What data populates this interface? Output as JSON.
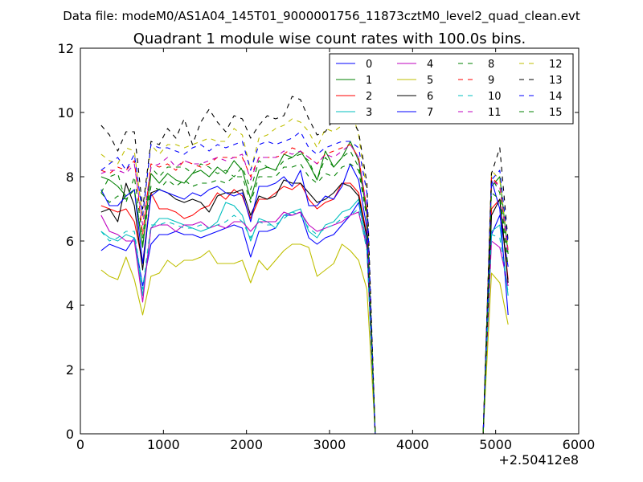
{
  "chart_data": {
    "type": "line",
    "suptitle": "Data file: modeM0/AS1A04_145T01_9000001756_11873cztM0_level2_quad_clean.evt",
    "title": "Quadrant 1 module wise count rates with 100.0s bins.",
    "xlabel": "",
    "ylabel": "",
    "offset_text": "+2.50412e8",
    "xlim": [
      0,
      6000
    ],
    "ylim": [
      0,
      12
    ],
    "xticks": [
      0,
      1000,
      2000,
      3000,
      4000,
      5000,
      6000
    ],
    "yticks": [
      0,
      2,
      4,
      6,
      8,
      10,
      12
    ],
    "legend": {
      "placement": "top-right",
      "columns": 4
    },
    "x": [
      250,
      350,
      450,
      550,
      650,
      750,
      850,
      950,
      1050,
      1150,
      1250,
      1350,
      1450,
      1550,
      1650,
      1750,
      1850,
      1950,
      2050,
      2150,
      2250,
      2350,
      2450,
      2550,
      2650,
      2750,
      2850,
      2950,
      3050,
      3150,
      3250,
      3350,
      3450,
      3550,
      3650,
      3750,
      3850,
      3950,
      4050,
      4150,
      4250,
      4350,
      4450,
      4550,
      4650,
      4750,
      4850,
      4950,
      5050,
      5150
    ],
    "series": [
      {
        "name": "0",
        "color": "#0000ff",
        "dash": false,
        "values": [
          5.7,
          5.9,
          5.8,
          5.7,
          6.1,
          4.6,
          5.9,
          6.2,
          6.2,
          6.3,
          6.2,
          6.2,
          6.1,
          6.2,
          6.3,
          6.4,
          6.5,
          6.4,
          5.5,
          6.3,
          6.3,
          6.4,
          6.8,
          6.8,
          6.9,
          6.1,
          5.9,
          6.1,
          6.2,
          6.5,
          6.8,
          7.2,
          5.9,
          0,
          0,
          0,
          0,
          0,
          0,
          0,
          0,
          0,
          0,
          0,
          0,
          0,
          0,
          6.2,
          6.8,
          5.2
        ]
      },
      {
        "name": "1",
        "color": "#008000",
        "dash": false,
        "values": [
          8.0,
          7.9,
          7.7,
          7.4,
          7.6,
          5.8,
          8.1,
          7.8,
          8.1,
          7.9,
          7.8,
          8.1,
          8.2,
          8.0,
          8.3,
          8.1,
          8.5,
          8.2,
          7.3,
          8.2,
          8.3,
          8.2,
          8.7,
          8.6,
          8.8,
          8.4,
          7.9,
          8.8,
          8.3,
          8.6,
          9.1,
          8.5,
          6.8,
          0,
          0,
          0,
          0,
          0,
          0,
          0,
          0,
          0,
          0,
          0,
          0,
          0,
          0,
          7.7,
          8.0,
          5.6
        ]
      },
      {
        "name": "2",
        "color": "#ff0000",
        "dash": false,
        "values": [
          7.1,
          7.0,
          6.9,
          7.0,
          6.6,
          5.3,
          7.5,
          7.0,
          7.0,
          6.9,
          6.7,
          6.8,
          7.0,
          7.1,
          7.5,
          7.3,
          7.6,
          7.4,
          6.7,
          7.3,
          7.3,
          7.5,
          7.7,
          7.6,
          7.8,
          7.3,
          7.0,
          7.2,
          7.3,
          7.8,
          7.8,
          7.5,
          6.2,
          0,
          0,
          0,
          0,
          0,
          0,
          0,
          0,
          0,
          0,
          0,
          0,
          0,
          0,
          7.0,
          7.3,
          4.8
        ]
      },
      {
        "name": "3",
        "color": "#00bfbf",
        "dash": false,
        "values": [
          6.3,
          6.1,
          6.0,
          6.2,
          6.1,
          4.3,
          6.4,
          6.7,
          6.7,
          6.6,
          6.5,
          6.4,
          6.3,
          6.4,
          6.6,
          7.2,
          7.1,
          6.8,
          6.0,
          6.7,
          6.6,
          6.4,
          6.8,
          6.9,
          7.0,
          6.3,
          6.1,
          6.5,
          6.6,
          6.9,
          7.0,
          7.3,
          5.8,
          0,
          0,
          0,
          0,
          0,
          0,
          0,
          0,
          0,
          0,
          0,
          0,
          0,
          0,
          6.3,
          6.5,
          4.3
        ]
      },
      {
        "name": "4",
        "color": "#bf00bf",
        "dash": false,
        "values": [
          6.8,
          6.3,
          6.2,
          6.0,
          6.0,
          4.1,
          6.4,
          6.5,
          6.5,
          6.3,
          6.5,
          6.5,
          6.6,
          6.4,
          6.5,
          6.4,
          6.6,
          6.6,
          6.3,
          6.6,
          6.6,
          6.6,
          6.9,
          6.8,
          6.9,
          6.5,
          6.3,
          6.4,
          6.5,
          6.6,
          6.8,
          6.9,
          5.8,
          0,
          0,
          0,
          0,
          0,
          0,
          0,
          0,
          0,
          0,
          0,
          0,
          0,
          0,
          6.0,
          5.8,
          4.6
        ]
      },
      {
        "name": "5",
        "color": "#bfbf00",
        "dash": false,
        "values": [
          5.1,
          4.9,
          4.8,
          5.5,
          4.8,
          3.7,
          4.9,
          5.0,
          5.4,
          5.2,
          5.4,
          5.4,
          5.5,
          5.7,
          5.3,
          5.3,
          5.3,
          5.4,
          4.7,
          5.4,
          5.1,
          5.4,
          5.7,
          5.9,
          5.9,
          5.8,
          4.9,
          5.1,
          5.3,
          5.9,
          5.7,
          5.4,
          4.5,
          0,
          0,
          0,
          0,
          0,
          0,
          0,
          0,
          0,
          0,
          0,
          0,
          0,
          0,
          5.0,
          4.7,
          3.4
        ]
      },
      {
        "name": "6",
        "color": "#000000",
        "dash": false,
        "values": [
          6.9,
          7.0,
          6.6,
          7.8,
          7.1,
          5.1,
          7.5,
          7.6,
          7.5,
          7.3,
          7.2,
          7.3,
          7.2,
          6.9,
          7.4,
          7.5,
          7.5,
          7.6,
          6.8,
          7.4,
          7.3,
          7.4,
          7.9,
          7.8,
          7.8,
          7.5,
          7.2,
          7.3,
          7.5,
          7.8,
          7.7,
          7.4,
          6.1,
          0,
          0,
          0,
          0,
          0,
          0,
          0,
          0,
          0,
          0,
          0,
          0,
          0,
          0,
          6.8,
          7.3,
          4.7
        ]
      },
      {
        "name": "7",
        "color": "#0000ff",
        "dash": false,
        "values": [
          7.6,
          7.1,
          7.1,
          7.4,
          7.6,
          5.3,
          7.4,
          7.6,
          7.5,
          7.4,
          7.3,
          7.5,
          7.4,
          7.6,
          7.7,
          7.5,
          7.4,
          7.5,
          6.6,
          7.7,
          7.7,
          7.8,
          8.0,
          7.7,
          8.2,
          7.1,
          7.1,
          7.4,
          7.3,
          7.7,
          8.4,
          7.9,
          6.4,
          0,
          0,
          0,
          0,
          0,
          0,
          0,
          0,
          0,
          0,
          0,
          0,
          0,
          0,
          7.9,
          7.0,
          3.7
        ]
      },
      {
        "name": "8",
        "color": "#008000",
        "dash": true,
        "values": [
          7.5,
          8.0,
          8.1,
          7.2,
          8.0,
          6.1,
          8.3,
          8.0,
          8.3,
          8.3,
          8.3,
          8.1,
          8.4,
          8.3,
          8.1,
          8.2,
          8.0,
          8.3,
          7.6,
          8.5,
          8.3,
          8.2,
          8.5,
          8.6,
          8.7,
          8.5,
          7.9,
          8.6,
          8.3,
          8.6,
          8.8,
          8.3,
          6.9,
          0,
          0,
          0,
          0,
          0,
          0,
          0,
          0,
          0,
          0,
          0,
          0,
          0,
          0,
          8.0,
          7.5,
          5.5
        ]
      },
      {
        "name": "9",
        "color": "#ff0000",
        "dash": true,
        "values": [
          8.2,
          8.1,
          8.3,
          8.2,
          8.5,
          6.2,
          8.4,
          8.3,
          8.4,
          8.2,
          8.5,
          8.4,
          8.3,
          8.4,
          8.6,
          8.6,
          8.6,
          8.6,
          8.0,
          8.6,
          8.6,
          8.6,
          8.7,
          8.9,
          8.8,
          8.6,
          8.4,
          8.7,
          8.8,
          8.9,
          9.0,
          8.6,
          7.0,
          0,
          0,
          0,
          0,
          0,
          0,
          0,
          0,
          0,
          0,
          0,
          0,
          0,
          0,
          8.0,
          7.7,
          5.7
        ]
      },
      {
        "name": "10",
        "color": "#00bfbf",
        "dash": true,
        "values": [
          6.3,
          6.0,
          6.1,
          6.3,
          6.3,
          4.5,
          6.5,
          6.5,
          6.6,
          6.5,
          6.4,
          6.4,
          6.5,
          6.4,
          6.5,
          6.6,
          6.8,
          6.6,
          6.1,
          6.6,
          6.5,
          6.5,
          6.7,
          6.9,
          6.8,
          6.4,
          6.2,
          6.4,
          6.5,
          6.7,
          6.8,
          7.0,
          5.7,
          0,
          0,
          0,
          0,
          0,
          0,
          0,
          0,
          0,
          0,
          0,
          0,
          0,
          0,
          6.2,
          6.1,
          4.4
        ]
      },
      {
        "name": "11",
        "color": "#bf00bf",
        "dash": true,
        "values": [
          8.1,
          8.2,
          8.2,
          8.1,
          8.4,
          6.5,
          8.3,
          8.4,
          8.6,
          8.3,
          8.5,
          8.4,
          8.4,
          8.5,
          8.6,
          8.5,
          8.6,
          8.7,
          7.9,
          8.6,
          8.6,
          8.6,
          8.8,
          8.7,
          8.8,
          8.6,
          8.4,
          8.7,
          8.6,
          8.8,
          9.0,
          8.6,
          7.0,
          0,
          0,
          0,
          0,
          0,
          0,
          0,
          0,
          0,
          0,
          0,
          0,
          0,
          0,
          7.9,
          7.7,
          5.6
        ]
      },
      {
        "name": "12",
        "color": "#bfbf00",
        "dash": true,
        "values": [
          8.7,
          8.5,
          8.4,
          8.9,
          8.8,
          6.7,
          9.0,
          8.7,
          9.0,
          9.0,
          8.9,
          9.0,
          9.1,
          9.2,
          9.1,
          9.1,
          9.5,
          9.3,
          8.2,
          9.2,
          9.3,
          9.5,
          9.6,
          9.8,
          9.7,
          9.4,
          8.9,
          9.5,
          9.4,
          9.6,
          10.2,
          9.3,
          7.5,
          0,
          0,
          0,
          0,
          0,
          0,
          0,
          0,
          0,
          0,
          0,
          0,
          0,
          0,
          8.2,
          7.9,
          5.8
        ]
      },
      {
        "name": "13",
        "color": "#000000",
        "dash": true,
        "values": [
          9.6,
          9.3,
          8.8,
          9.4,
          9.4,
          7.0,
          9.1,
          9.0,
          9.5,
          9.2,
          9.8,
          9.0,
          9.7,
          10.1,
          9.7,
          9.4,
          9.9,
          9.8,
          9.2,
          9.6,
          9.9,
          9.8,
          9.9,
          10.5,
          10.4,
          9.8,
          9.3,
          9.4,
          9.8,
          10.2,
          9.9,
          9.4,
          7.8,
          0,
          0,
          0,
          0,
          0,
          0,
          0,
          0,
          0,
          0,
          0,
          0,
          0,
          0,
          8.1,
          8.9,
          6.0
        ]
      },
      {
        "name": "14",
        "color": "#0000ff",
        "dash": true,
        "values": [
          8.2,
          8.4,
          8.6,
          8.2,
          8.7,
          6.8,
          9.0,
          8.9,
          8.9,
          8.8,
          8.7,
          8.9,
          9.0,
          8.8,
          9.0,
          8.9,
          9.0,
          9.1,
          8.2,
          9.0,
          9.1,
          9.0,
          9.1,
          9.2,
          9.4,
          8.9,
          8.7,
          8.9,
          9.0,
          9.1,
          9.1,
          8.9,
          7.5,
          0,
          0,
          0,
          0,
          0,
          0,
          0,
          0,
          0,
          0,
          0,
          0,
          0,
          0,
          7.9,
          8.2,
          5.9
        ]
      },
      {
        "name": "15",
        "color": "#008000",
        "dash": true,
        "values": [
          7.5,
          7.2,
          7.4,
          7.3,
          7.6,
          5.9,
          7.7,
          7.6,
          7.9,
          7.7,
          7.9,
          7.7,
          7.8,
          7.8,
          7.9,
          7.8,
          8.0,
          8.0,
          7.2,
          8.0,
          8.0,
          8.0,
          8.3,
          8.3,
          8.4,
          8.0,
          7.8,
          8.1,
          8.0,
          8.3,
          8.4,
          8.2,
          6.7,
          0,
          0,
          0,
          0,
          0,
          0,
          0,
          0,
          0,
          0,
          0,
          0,
          0,
          0,
          7.5,
          7.3,
          5.2
        ]
      }
    ]
  }
}
